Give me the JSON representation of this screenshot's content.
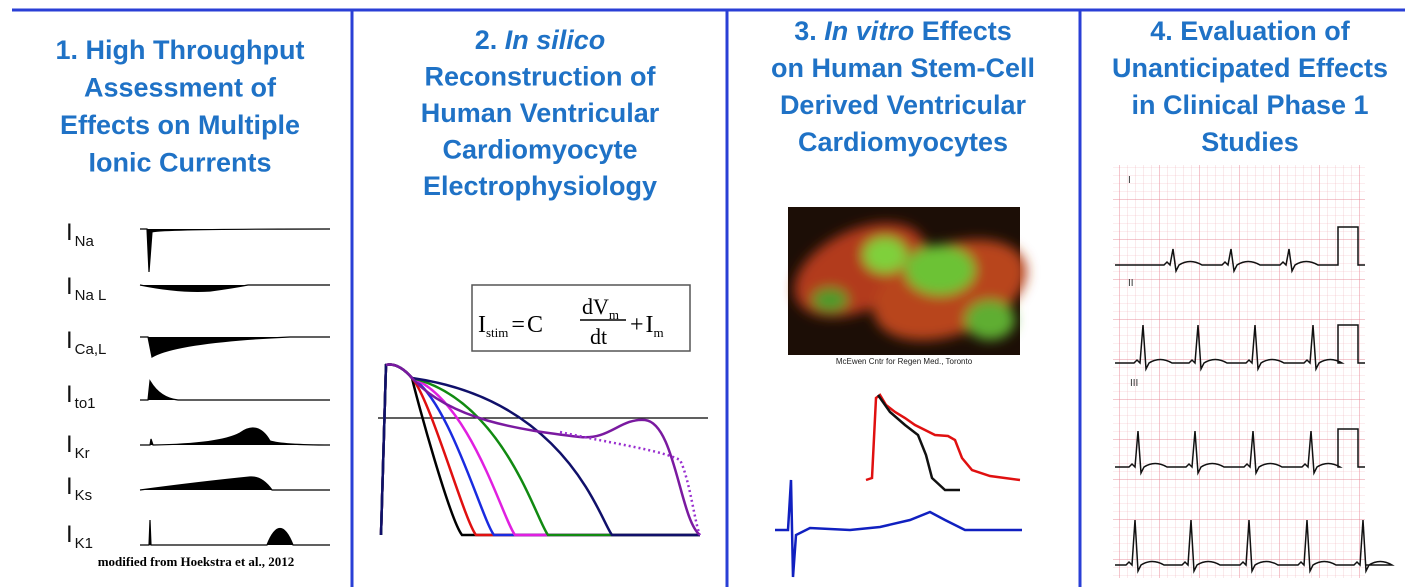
{
  "panels": [
    {
      "title": [
        "1. High Throughput",
        "Assessment of",
        "Effects on Multiple",
        "Ionic Currents"
      ],
      "currents": [
        {
          "symbol": "I",
          "subscript": "Na"
        },
        {
          "symbol": "I",
          "subscript": "Na L"
        },
        {
          "symbol": "I",
          "subscript": "Ca,L"
        },
        {
          "symbol": "I",
          "subscript": "to1"
        },
        {
          "symbol": "I",
          "subscript": "Kr"
        },
        {
          "symbol": "I",
          "subscript": "Ks"
        },
        {
          "symbol": "I",
          "subscript": "K1"
        }
      ],
      "caption": "modified from Hoekstra et al., 2012"
    },
    {
      "title": [
        [
          {
            "text": "2. "
          },
          {
            "text": "In silico",
            "italic": true
          }
        ],
        "Reconstruction of",
        "Human Ventricular",
        "Cardiomyocyte",
        "Electrophysiology"
      ],
      "equation": {
        "lhs": "I",
        "lhs_sub": "stim",
        "equals": "=",
        "coef": "C",
        "num": "dV",
        "num_sub": "m",
        "den": "dt",
        "plus": "+",
        "term": "I",
        "term_sub": "m"
      }
    },
    {
      "title": [
        [
          {
            "text": "3. "
          },
          {
            "text": "In vitro",
            "italic": true
          },
          {
            "text": " Effects"
          }
        ],
        "on Human Stem-Cell",
        "Derived Ventricular",
        "Cardiomyocytes"
      ],
      "caption": "McEwen Cntr for Regen Med., Toronto"
    },
    {
      "title": [
        "4. Evaluation of",
        "Unanticipated Effects",
        "in Clinical Phase 1",
        "Studies"
      ],
      "leads": [
        "I",
        "II",
        "III"
      ]
    }
  ]
}
